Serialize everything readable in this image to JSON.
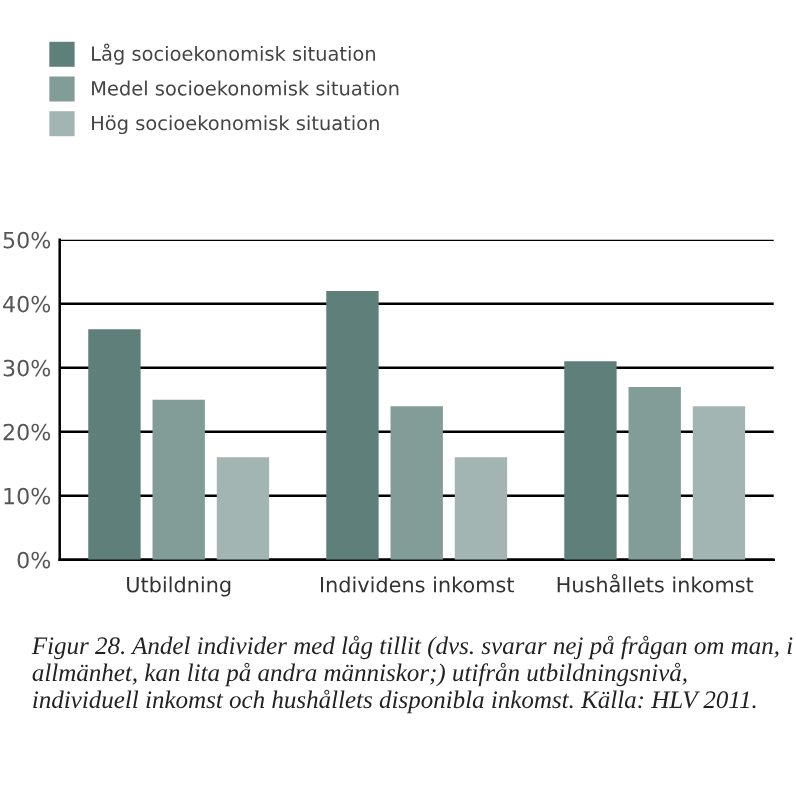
{
  "chart_data": {
    "type": "bar",
    "categories": [
      "Utbildning",
      "Individens inkomst",
      "Hushållets inkomst"
    ],
    "series": [
      {
        "name": "Låg socioekonomisk situation",
        "color": "#5e7f7a",
        "values": [
          36,
          42,
          31
        ]
      },
      {
        "name": "Medel socioekonomisk situation",
        "color": "#829c98",
        "values": [
          25,
          24,
          27
        ]
      },
      {
        "name": "Hög socioekonomisk situation",
        "color": "#a2b5b2",
        "values": [
          16,
          16,
          24
        ]
      }
    ],
    "ylim": [
      0,
      50
    ],
    "yticks": [
      {
        "value": 0,
        "label": "0%"
      },
      {
        "value": 10,
        "label": "10%"
      },
      {
        "value": 20,
        "label": "20%"
      },
      {
        "value": 30,
        "label": "30%"
      },
      {
        "value": 40,
        "label": "40%"
      },
      {
        "value": 50,
        "label": "50%"
      }
    ],
    "grid": "y",
    "legend": "top left",
    "annotations": [
      "Figur 28. Andel individer med låg tillit (dvs. svarar nej på frågan om man, i allmänhet, kan lita på andra människor;) utifrån utbildningsnivå, individuell inkomst och hushållets disponibla inkomst. Källa: HLV 2011."
    ]
  }
}
